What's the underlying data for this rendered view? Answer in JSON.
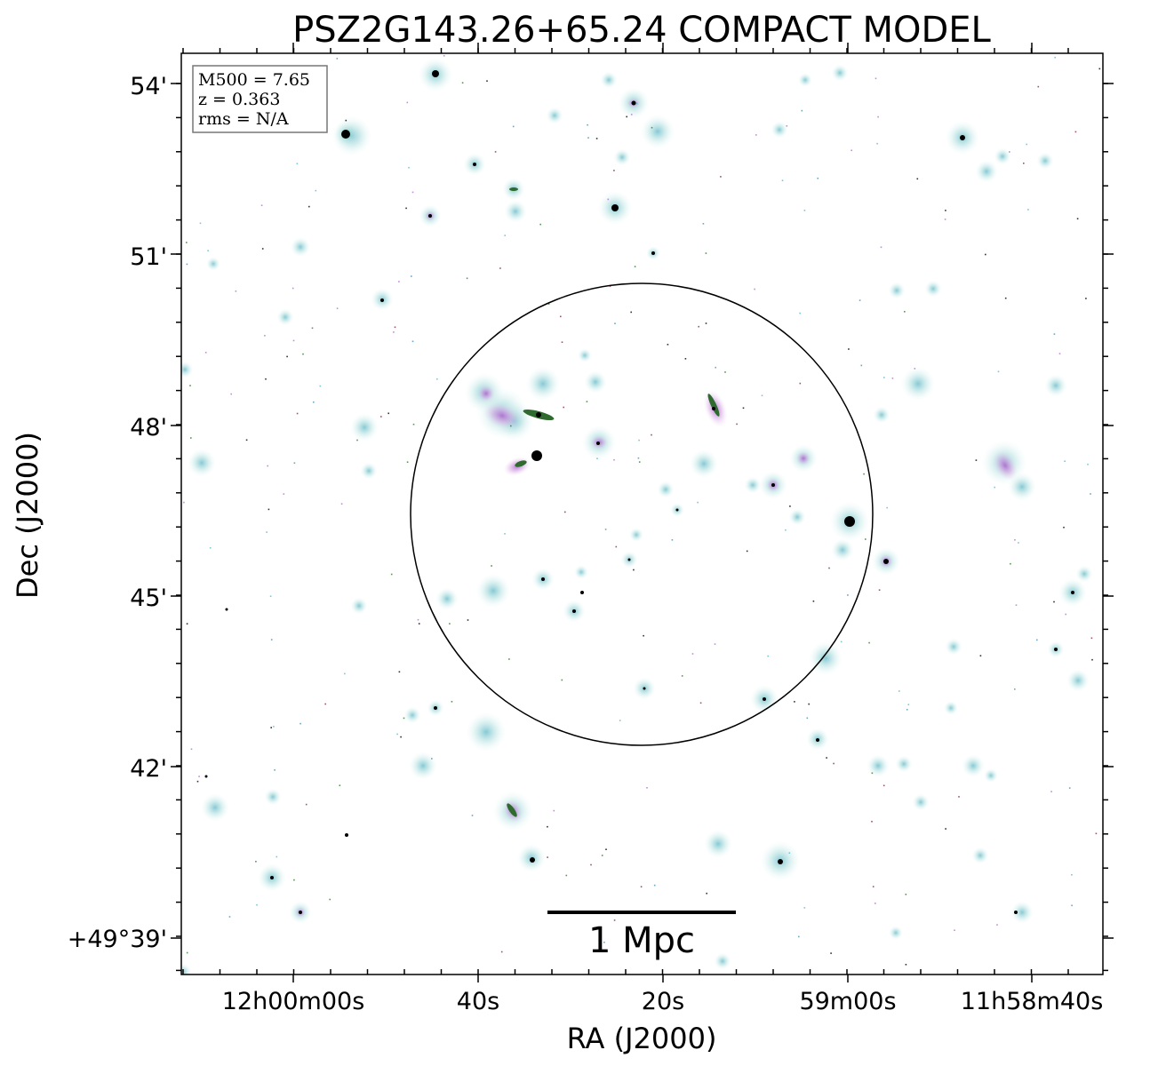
{
  "title": "PSZ2G143.26+65.24 COMPACT MODEL",
  "xlabel": "RA (J2000)",
  "ylabel": "Dec (J2000)",
  "ra_ticks": [
    "12h00m00s",
    "40s",
    "20s",
    "59m00s",
    "11h58m40s"
  ],
  "dec_ticks": [
    "54'",
    "51'",
    "48'",
    "45'",
    "42'",
    "+49°39'"
  ],
  "info_box": {
    "mass": "M500 = 7.65",
    "redshift": "z = 0.363",
    "rms": "rms = N/A"
  },
  "scale_bar": {
    "label": "1 Mpc"
  },
  "colors": {
    "halo": "#bfe6e6",
    "halo_core": "#5fb8c8",
    "magenta": "#c890d8",
    "core": "#000000",
    "green": "#2f7a2f",
    "circle": "#000000"
  }
}
